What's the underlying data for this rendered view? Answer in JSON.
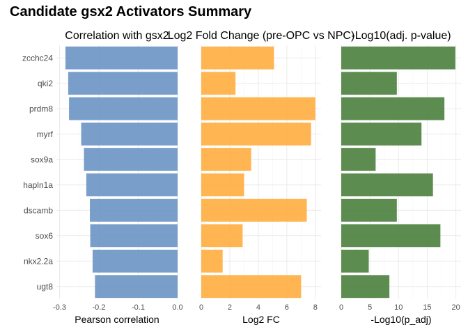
{
  "title": "Candidate gsx2 Activators Summary",
  "chart_data": [
    {
      "type": "bar",
      "orientation": "horizontal",
      "title": "Correlation with gsx2",
      "xlabel": "Pearson correlation",
      "ylabel": "",
      "categories": [
        "zcchc24",
        "qki2",
        "prdm8",
        "myrf",
        "sox9a",
        "hapln1a",
        "dscamb",
        "sox6",
        "nkx2.2a",
        "ugt8"
      ],
      "values": [
        -0.285,
        -0.278,
        -0.276,
        -0.245,
        -0.238,
        -0.232,
        -0.223,
        -0.222,
        -0.216,
        -0.21
      ],
      "xlim": [
        -0.308,
        0.0
      ],
      "xticks": [
        -0.3,
        -0.2,
        -0.1,
        0.0
      ],
      "xtick_labels": [
        "-0.3",
        "-0.2",
        "-0.1",
        "0.0"
      ],
      "color": "#6a93c4",
      "grid": true
    },
    {
      "type": "bar",
      "orientation": "horizontal",
      "title": "Log2 Fold Change (pre-OPC vs NPC)",
      "xlabel": "Log2 FC",
      "ylabel": "",
      "categories": [
        "zcchc24",
        "qki2",
        "prdm8",
        "myrf",
        "sox9a",
        "hapln1a",
        "dscamb",
        "sox6",
        "nkx2.2a",
        "ugt8"
      ],
      "values": [
        5.1,
        2.4,
        8.0,
        7.7,
        3.5,
        3.0,
        7.4,
        2.9,
        1.5,
        7.0
      ],
      "xlim": [
        0,
        8.4
      ],
      "xticks": [
        0,
        2,
        4,
        6,
        8
      ],
      "xtick_labels": [
        "0",
        "2",
        "4",
        "6",
        "8"
      ],
      "color": "#ffad3e",
      "grid": true
    },
    {
      "type": "bar",
      "orientation": "horizontal",
      "title": "-Log10(adj. p-value)",
      "xlabel": "-Log10(p_adj)",
      "ylabel": "",
      "categories": [
        "zcchc24",
        "qki2",
        "prdm8",
        "myrf",
        "sox9a",
        "hapln1a",
        "dscamb",
        "sox6",
        "nkx2.2a",
        "ugt8"
      ],
      "values": [
        19.9,
        9.7,
        18.0,
        14.0,
        6.0,
        16.0,
        9.7,
        17.3,
        4.8,
        8.4
      ],
      "xlim": [
        0,
        20.9
      ],
      "xticks": [
        0,
        5,
        10,
        15,
        20
      ],
      "xtick_labels": [
        "0",
        "5",
        "10",
        "15",
        "20"
      ],
      "color": "#4a7f3c",
      "grid": true
    }
  ]
}
